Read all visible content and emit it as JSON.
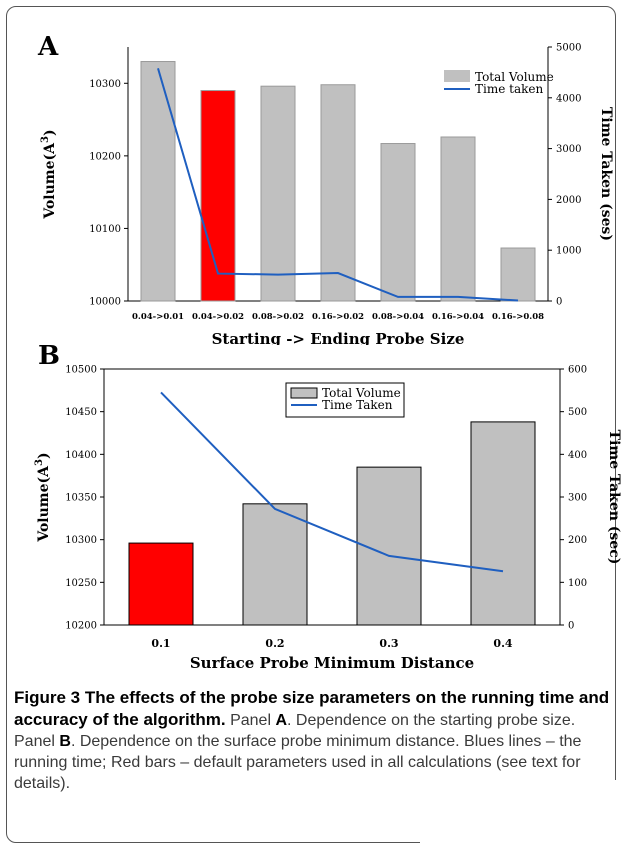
{
  "panels": {
    "a_label": "A",
    "b_label": "B"
  },
  "chart_data": [
    {
      "type": "bar",
      "panel": "A",
      "categories": [
        "0.04->0.01",
        "0.04->0.02",
        "0.08->0.02",
        "0.16->0.02",
        "0.08->0.04",
        "0.16->0.04",
        "0.16->0.08"
      ],
      "series": [
        {
          "name": "Total Volume",
          "kind": "bar",
          "axis": "left",
          "values": [
            10330,
            10290,
            10296,
            10298,
            10217,
            10226,
            10073
          ]
        },
        {
          "name": "Time taken",
          "kind": "line",
          "axis": "right",
          "values": [
            4580,
            540,
            520,
            550,
            80,
            80,
            10
          ]
        }
      ],
      "highlight_index": 1,
      "xlabel": "Starting -> Ending Probe Size",
      "ylabel_left": "Volume(A",
      "ylabel_left_sup": "3",
      "ylabel_left_end": ")",
      "ylabel_right": "Time Taken (ses)",
      "ylim_left": [
        10000,
        10350
      ],
      "yticks_left": [
        10000,
        10100,
        10200,
        10300
      ],
      "ylim_right": [
        0,
        5000
      ],
      "yticks_right": [
        0,
        1000,
        2000,
        3000,
        4000,
        5000
      ],
      "legend_position": "top-right",
      "colors": {
        "bar": "#c0c0c0",
        "highlight": "#ff0000",
        "line": "#1f5fc0"
      }
    },
    {
      "type": "bar",
      "panel": "B",
      "categories": [
        "0.1",
        "0.2",
        "0.3",
        "0.4"
      ],
      "series": [
        {
          "name": "Total Volume",
          "kind": "bar",
          "axis": "left",
          "values": [
            10296,
            10342,
            10385,
            10438
          ]
        },
        {
          "name": "Time Taken",
          "kind": "line",
          "axis": "right",
          "values": [
            545,
            272,
            162,
            126
          ]
        }
      ],
      "highlight_index": 0,
      "xlabel": "Surface Probe Minimum Distance",
      "ylabel_left": "Volume(A",
      "ylabel_left_sup": "3",
      "ylabel_left_end": ")",
      "ylabel_right": "Time Taken (sec)",
      "ylim_left": [
        10200,
        10500
      ],
      "yticks_left": [
        10200,
        10250,
        10300,
        10350,
        10400,
        10450,
        10500
      ],
      "ylim_right": [
        0,
        600
      ],
      "yticks_right": [
        0,
        100,
        200,
        300,
        400,
        500,
        600
      ],
      "legend_position": "top-center",
      "colors": {
        "bar": "#c0c0c0",
        "highlight": "#ff0000",
        "line": "#1f5fc0"
      }
    }
  ],
  "caption": {
    "title": "Figure 3 The effects of the probe size parameters on the running time and accuracy of the algorithm.",
    "t1": "Panel",
    "p1": "A",
    "t2": ". Dependence on the starting probe size. Panel",
    "p2": "B",
    "t3": ". Dependence on the surface probe minimum distance. Blues lines – the running time; Red bars – default parameters used in all calculations (see text for details)."
  }
}
